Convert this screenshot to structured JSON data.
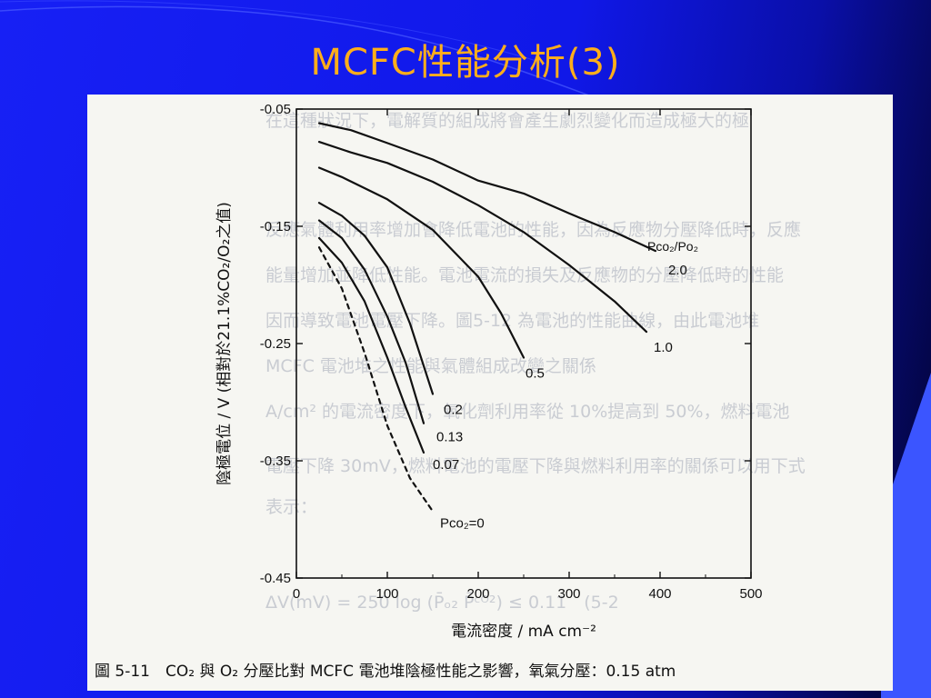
{
  "slide": {
    "title": "MCFC性能分析(3)",
    "colors": {
      "background": "#1018e8",
      "title": "#ffae1a"
    }
  },
  "figure": {
    "caption": "圖 5-11　CO₂ 與 O₂ 分壓比對 MCFC 電池堆陰極性能之影響，氧氣分壓：0.15 atm",
    "background_text_rows": [
      "在這種狀況下，電解質的組成將會產生劇烈變化而造成極大的極",
      "反應氣體利用率增加會降低電池的性能，因為反應物分壓降低時，反應",
      "能量增加並降低性能。電池電流的損失及反應物的分壓降低時的性能",
      "因而導致電池電壓下降。圖5-12 為電池的性能曲線，由此電池堆",
      "MCFC 電池堆之性能與氣體組成改變之關係",
      "A/cm² 的電流密度下，氧化劑利用率從 10%提高到 50%，燃料電池",
      "電壓下降 30mV，燃料電池的電壓下降與燃料利用率的關係可以用下式",
      "表示：",
      "ΔV(mV) = 250 log (P̄ₒ₂ P̄ᶜᴼ²) ≤ 0.11　(5-2"
    ]
  },
  "chart_data": {
    "type": "line",
    "title": "",
    "xlabel": "電流密度 / mA cm⁻²",
    "ylabel": "陰極電位 / V (相對於21.1%CO₂/O₂之值)",
    "xlim": [
      0,
      500
    ],
    "ylim": [
      -0.45,
      -0.05
    ],
    "x_ticks": [
      0,
      100,
      200,
      300,
      400,
      500
    ],
    "x_tick_labels": [
      "0",
      "100",
      "200",
      "300",
      "400",
      "500"
    ],
    "y_ticks": [
      -0.05,
      -0.15,
      -0.25,
      -0.35,
      -0.45
    ],
    "y_tick_labels": [
      "-0.05",
      "-0.15",
      "-0.25",
      "-0.35",
      "-0.45"
    ],
    "legend_title": "Pco₂/Po₂",
    "series": [
      {
        "name": "2.0",
        "style": "solid",
        "x": [
          25,
          60,
          100,
          150,
          200,
          250,
          300,
          350,
          395
        ],
        "y": [
          -0.062,
          -0.068,
          -0.079,
          -0.093,
          -0.111,
          -0.122,
          -0.139,
          -0.155,
          -0.171
        ]
      },
      {
        "name": "1.0",
        "style": "solid",
        "x": [
          25,
          60,
          100,
          150,
          200,
          250,
          300,
          350,
          385
        ],
        "y": [
          -0.078,
          -0.087,
          -0.096,
          -0.112,
          -0.132,
          -0.155,
          -0.183,
          -0.214,
          -0.24
        ]
      },
      {
        "name": "0.5",
        "style": "solid",
        "x": [
          25,
          50,
          100,
          150,
          200,
          225,
          250
        ],
        "y": [
          -0.1,
          -0.108,
          -0.127,
          -0.153,
          -0.193,
          -0.224,
          -0.262
        ]
      },
      {
        "name": "0.2",
        "style": "solid",
        "x": [
          25,
          50,
          75,
          100,
          125,
          150
        ],
        "y": [
          -0.13,
          -0.141,
          -0.158,
          -0.185,
          -0.233,
          -0.293
        ]
      },
      {
        "name": "0.13",
        "style": "solid",
        "x": [
          25,
          50,
          75,
          100,
          120,
          140
        ],
        "y": [
          -0.145,
          -0.16,
          -0.187,
          -0.227,
          -0.266,
          -0.318
        ]
      },
      {
        "name": "0.07",
        "style": "solid",
        "x": [
          25,
          50,
          75,
          100,
          120,
          140
        ],
        "y": [
          -0.16,
          -0.181,
          -0.214,
          -0.262,
          -0.304,
          -0.343
        ]
      },
      {
        "name": "Pco₂=0",
        "style": "dashed",
        "x": [
          25,
          50,
          75,
          100,
          125,
          150
        ],
        "y": [
          -0.168,
          -0.203,
          -0.258,
          -0.32,
          -0.365,
          -0.393
        ]
      }
    ],
    "curve_labels": [
      "2.0",
      "1.0",
      "0.5",
      "0.2",
      "0.13",
      "0.07",
      "Pco₂=0"
    ],
    "grid": false,
    "legend": "right"
  }
}
